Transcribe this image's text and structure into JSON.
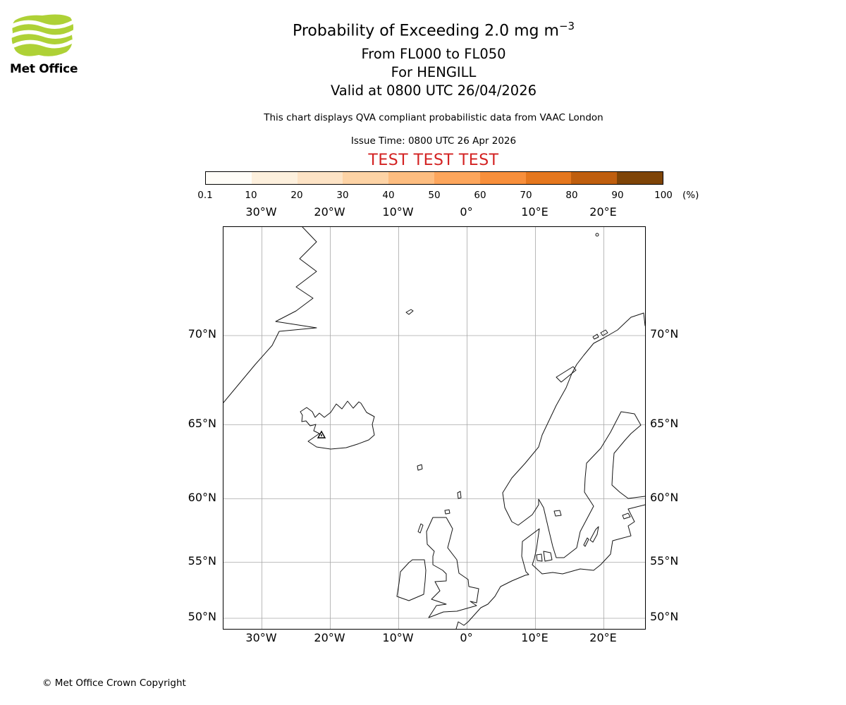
{
  "logo": {
    "text": "Met Office",
    "color": "#aed136"
  },
  "header": {
    "title": {
      "main": "Probability of Exceeding 2.0 mg m",
      "superscript": "−3"
    },
    "subtitle1": "From FL000 to FL050",
    "subtitle2": "For HENGILL",
    "subtitle3": "Valid at 0800 UTC 26/04/2026",
    "description": "This chart displays QVA compliant probabilistic data from VAAC London",
    "issue_time": "Issue Time: 0800 UTC 26 Apr 2026",
    "test_banner": {
      "text": "TEST TEST TEST",
      "color": "#d32222"
    }
  },
  "colorbar": {
    "unit": "(%)",
    "ticks": [
      "0.1",
      "10",
      "20",
      "30",
      "40",
      "50",
      "60",
      "70",
      "80",
      "90",
      "100"
    ],
    "colors": [
      "#fffdf8",
      "#fdf0dd",
      "#fde3c5",
      "#fdd3a5",
      "#fdbd80",
      "#fda65c",
      "#f88f3b",
      "#e5771e",
      "#bf5e0e",
      "#7e4407"
    ]
  },
  "map": {
    "lon_labels": [
      "30°W",
      "20°W",
      "10°W",
      "0°",
      "10°E",
      "20°E"
    ],
    "lat_labels": [
      "70°N",
      "65°N",
      "60°N",
      "55°N",
      "50°N"
    ],
    "icons": {
      "volcano": "triangle-up"
    }
  },
  "footer": {
    "copyright": "© Met Office Crown Copyright"
  }
}
